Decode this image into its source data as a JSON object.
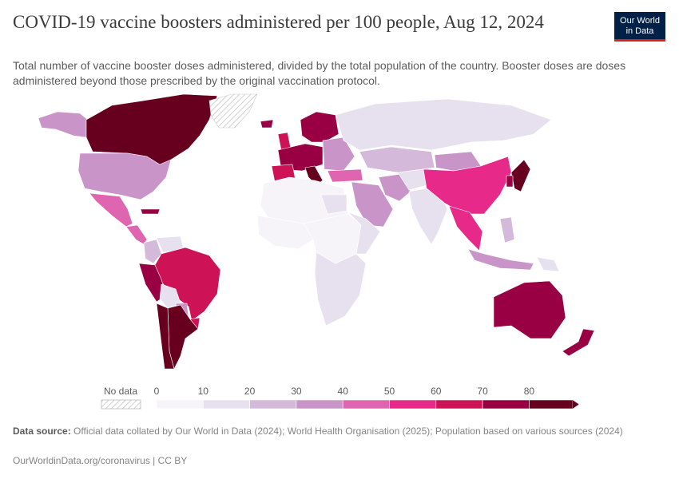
{
  "title": "COVID-19 vaccine boosters administered per 100 people, Aug 12, 2024",
  "subtitle": "Total number of vaccine booster doses administered, divided by the total population of the country. Booster doses are doses administered beyond those prescribed by the original vaccination protocol.",
  "logo": {
    "line1": "Our World",
    "line2": "in Data"
  },
  "legend": {
    "no_data_label": "No data",
    "ticks": [
      "0",
      "10",
      "20",
      "30",
      "40",
      "50",
      "60",
      "70",
      "80"
    ],
    "colors": [
      "#f7f4f9",
      "#e7e1ef",
      "#d4b9da",
      "#c994c7",
      "#df65b0",
      "#e7298a",
      "#ce1256",
      "#980043",
      "#67001f"
    ],
    "no_data_color": "#e8e8e8"
  },
  "map_regions": [
    {
      "name": "Alaska",
      "bin": 3
    },
    {
      "name": "Canada",
      "bin": 8
    },
    {
      "name": "Greenland",
      "bin": -1
    },
    {
      "name": "United States",
      "bin": 3
    },
    {
      "name": "Mexico",
      "bin": 4
    },
    {
      "name": "Central America",
      "bin": 4
    },
    {
      "name": "Cuba",
      "bin": 7
    },
    {
      "name": "Colombia",
      "bin": 2
    },
    {
      "name": "Venezuela",
      "bin": 1
    },
    {
      "name": "Brazil",
      "bin": 6
    },
    {
      "name": "Peru",
      "bin": 7
    },
    {
      "name": "Bolivia",
      "bin": 1
    },
    {
      "name": "Paraguay",
      "bin": 3
    },
    {
      "name": "Uruguay",
      "bin": 6
    },
    {
      "name": "Argentina",
      "bin": 8
    },
    {
      "name": "Chile",
      "bin": 8
    },
    {
      "name": "Iceland",
      "bin": 7
    },
    {
      "name": "United Kingdom",
      "bin": 6
    },
    {
      "name": "Scandinavia",
      "bin": 7
    },
    {
      "name": "Western Europe",
      "bin": 7
    },
    {
      "name": "Iberia",
      "bin": 6
    },
    {
      "name": "Italy",
      "bin": 8
    },
    {
      "name": "Eastern Europe",
      "bin": 3
    },
    {
      "name": "Russia",
      "bin": 1
    },
    {
      "name": "Turkey",
      "bin": 4
    },
    {
      "name": "Middle East",
      "bin": 3
    },
    {
      "name": "Iran",
      "bin": 3
    },
    {
      "name": "Kazakhstan",
      "bin": 2
    },
    {
      "name": "Central Asia",
      "bin": 1
    },
    {
      "name": "Mongolia",
      "bin": 3
    },
    {
      "name": "China",
      "bin": 5
    },
    {
      "name": "India",
      "bin": 1
    },
    {
      "name": "Southeast Asia",
      "bin": 5
    },
    {
      "name": "Japan",
      "bin": 8
    },
    {
      "name": "Korea",
      "bin": 7
    },
    {
      "name": "Indonesia",
      "bin": 3
    },
    {
      "name": "Philippines",
      "bin": 2
    },
    {
      "name": "Papua New Guinea",
      "bin": 1
    },
    {
      "name": "Australia",
      "bin": 7
    },
    {
      "name": "New Zealand",
      "bin": 7
    },
    {
      "name": "North Africa",
      "bin": 0
    },
    {
      "name": "Egypt",
      "bin": 1
    },
    {
      "name": "West Africa",
      "bin": 0
    },
    {
      "name": "Central Africa",
      "bin": 0
    },
    {
      "name": "East Africa",
      "bin": 1
    },
    {
      "name": "Southern Africa",
      "bin": 1
    }
  ],
  "footer": {
    "source_label": "Data source:",
    "source_text": "Official data collated by Our World in Data (2024); World Health Organisation (2025); Population based on various sources (2024)",
    "url": "OurWorldinData.org/coronavirus | CC BY"
  }
}
